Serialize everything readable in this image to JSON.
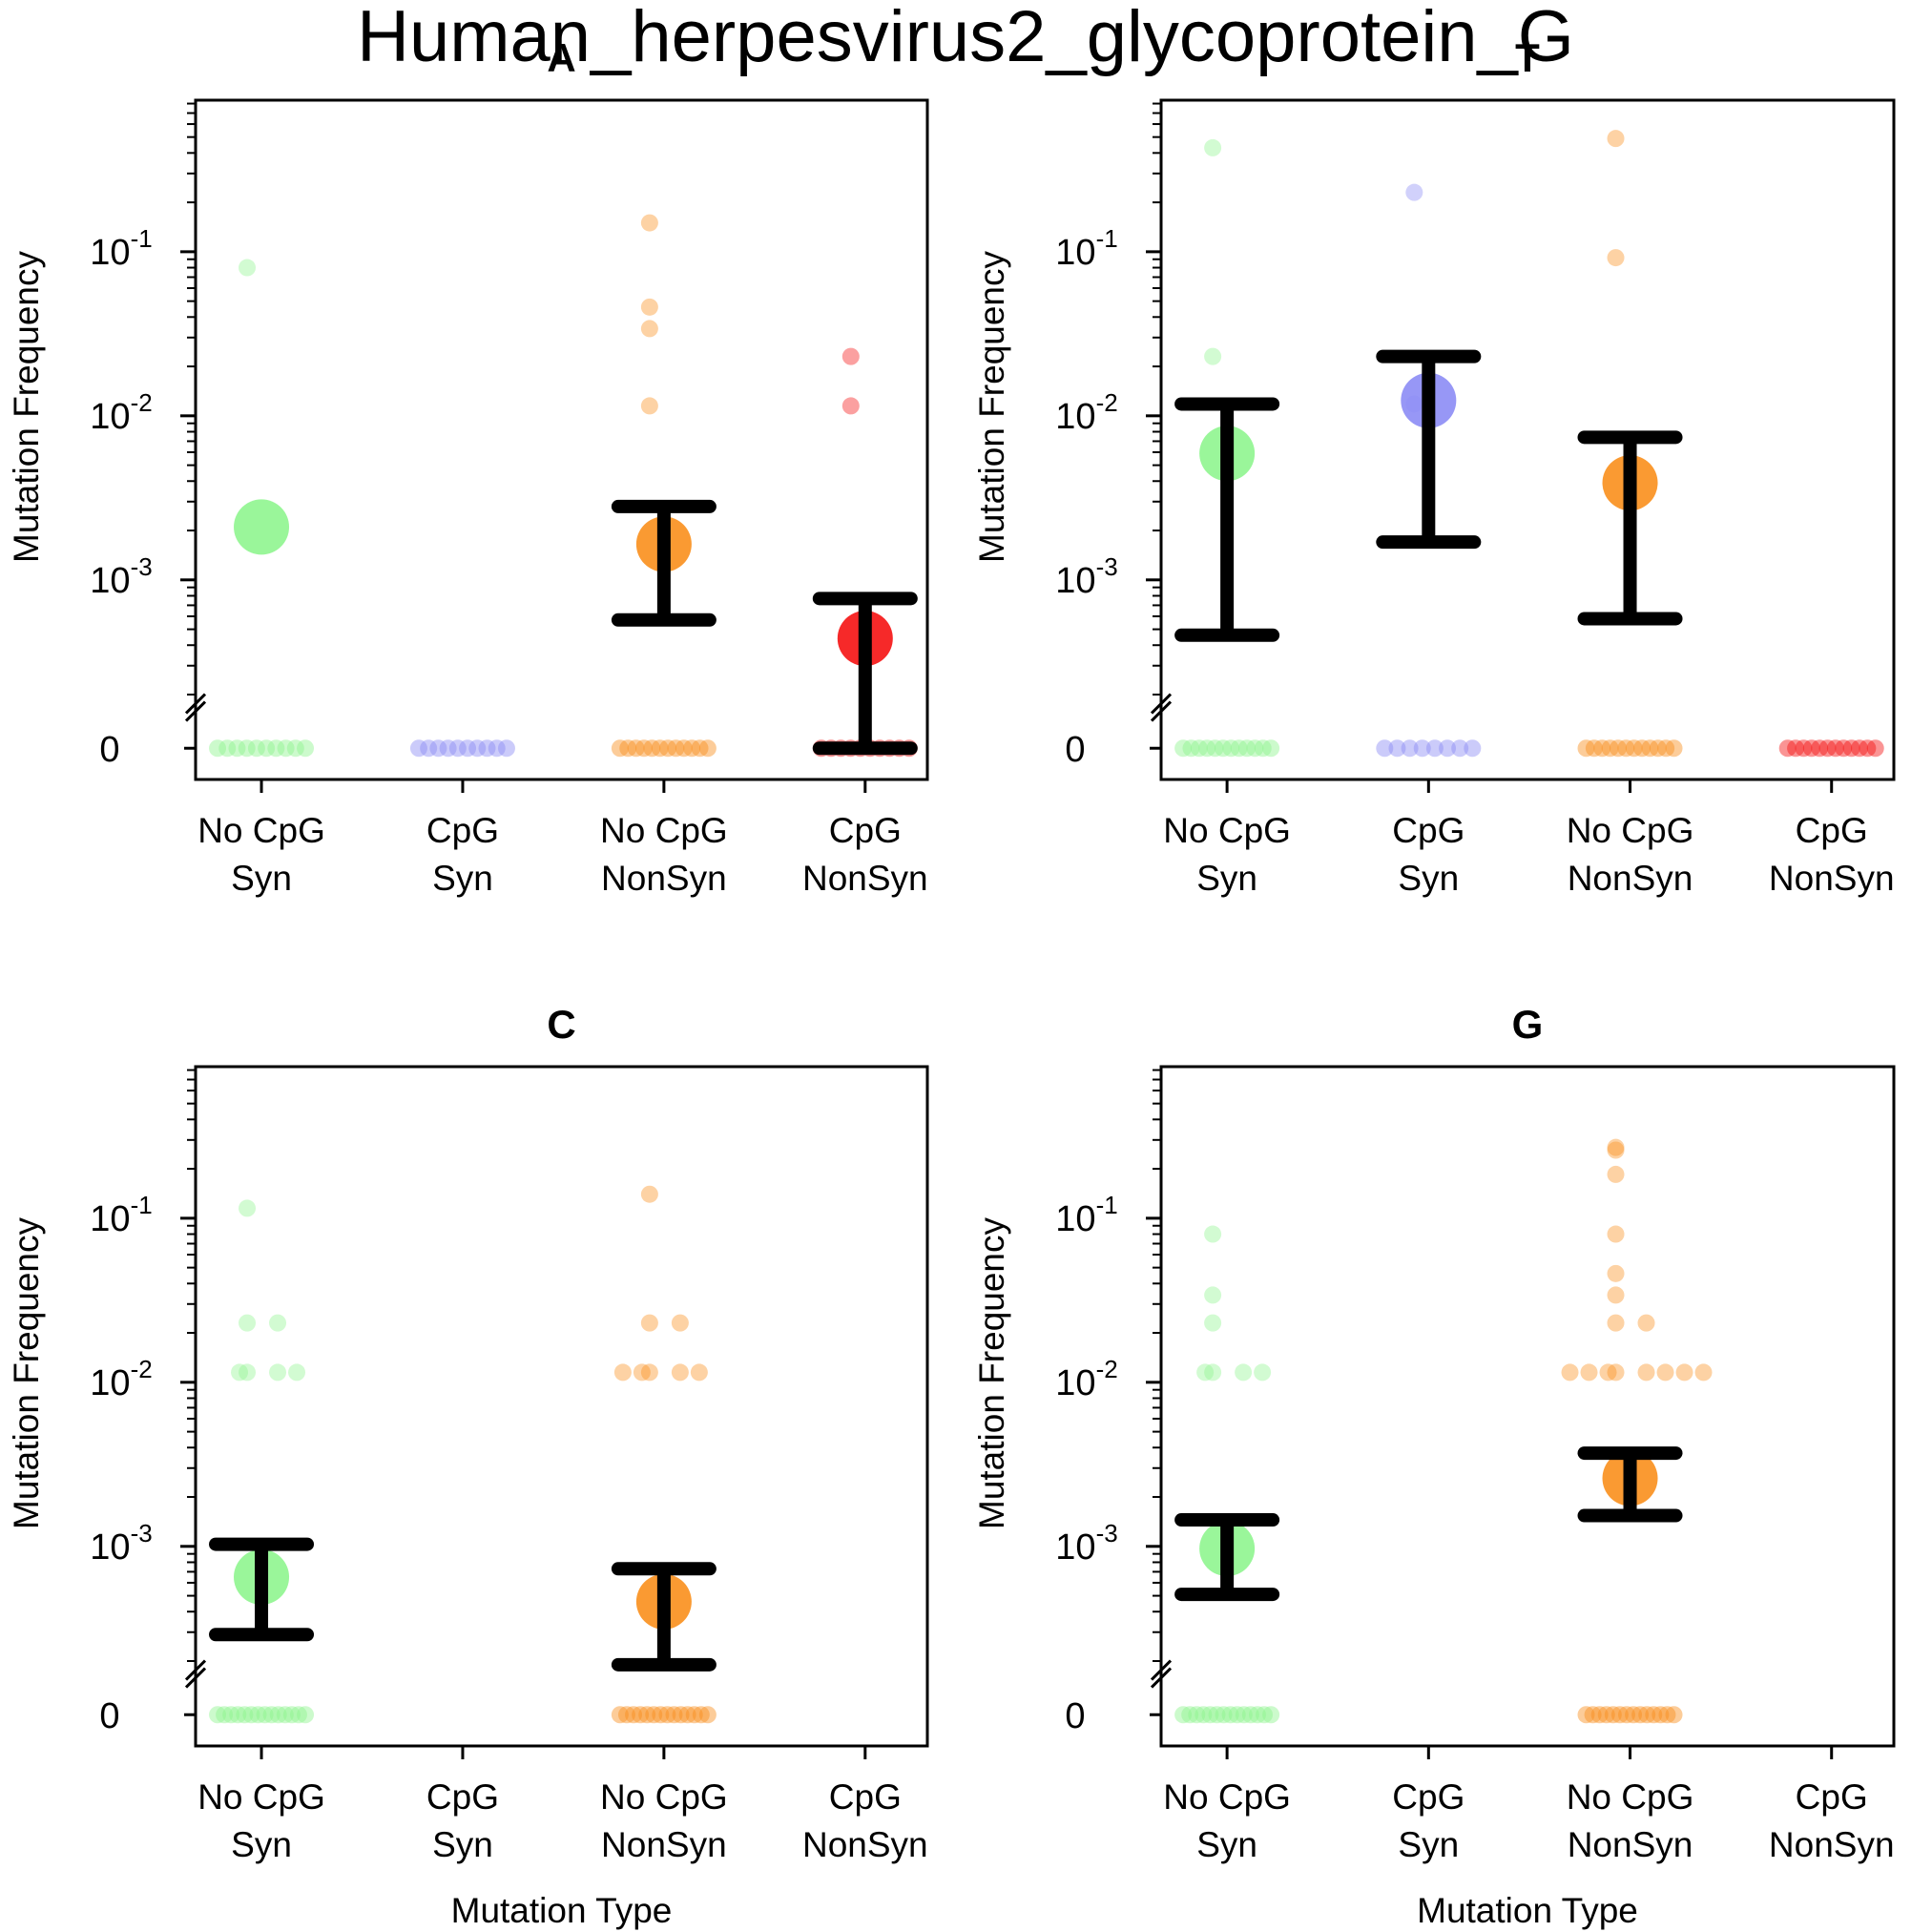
{
  "title": "Human_herpesvirus2_glycoprotein_G",
  "colors": {
    "syn_nocpg": "#8ff58f",
    "syn_cpg": "#8c8cf5",
    "nonsyn_nocpg": "#f98f1c",
    "nonsyn_cpg": "#f51212",
    "errorbar": "#000000",
    "axis": "#000000"
  },
  "chart_data": [
    {
      "type": "scatter",
      "title": "A",
      "xlabel": "",
      "ylabel": "Mutation Frequency",
      "yscale": "log",
      "ylim": [
        0.0002,
        0.8
      ],
      "zero_row": true,
      "categories": [
        "No CpG\nSyn",
        "CpG\nSyn",
        "No CpG\nNonSyn",
        "CpG\nNonSyn"
      ],
      "yticks": [
        {
          "base": "10",
          "exp": "-1"
        },
        {
          "base": "10",
          "exp": "-2"
        },
        {
          "base": "10",
          "exp": "-3"
        }
      ],
      "zero_label": "0",
      "series": [
        {
          "category": "No CpG\nSyn",
          "color_key": "syn_nocpg",
          "mean": 0.0021,
          "ci": null,
          "points": [
            0.08
          ],
          "zero_points": 10
        },
        {
          "category": "CpG\nSyn",
          "color_key": "syn_cpg",
          "mean": null,
          "ci": null,
          "points": [],
          "zero_points": 10
        },
        {
          "category": "No CpG\nNonSyn",
          "color_key": "nonsyn_nocpg",
          "mean": 0.00165,
          "ci": [
            0.00057,
            0.0028
          ],
          "points": [
            0.15,
            0.046,
            0.034,
            0.0115
          ],
          "zero_points": 12
        },
        {
          "category": "CpG\nNonSyn",
          "color_key": "nonsyn_cpg",
          "mean": 0.00044,
          "ci": [
            0.0,
            0.00077
          ],
          "points": [
            0.023,
            0.0115
          ],
          "zero_points": 10
        }
      ]
    },
    {
      "type": "scatter",
      "title": "T",
      "xlabel": "",
      "ylabel": "Mutation Frequency",
      "yscale": "log",
      "ylim": [
        0.0002,
        0.8
      ],
      "zero_row": true,
      "categories": [
        "No CpG\nSyn",
        "CpG\nSyn",
        "No CpG\nNonSyn",
        "CpG\nNonSyn"
      ],
      "yticks": [
        {
          "base": "10",
          "exp": "-1"
        },
        {
          "base": "10",
          "exp": "-2"
        },
        {
          "base": "10",
          "exp": "-3"
        }
      ],
      "zero_label": "0",
      "series": [
        {
          "category": "No CpG\nSyn",
          "color_key": "syn_nocpg",
          "mean": 0.0059,
          "ci": [
            0.00046,
            0.0118
          ],
          "points": [
            0.43,
            0.023
          ],
          "zero_points": 12
        },
        {
          "category": "CpG\nSyn",
          "color_key": "syn_cpg",
          "mean": 0.0124,
          "ci": [
            0.0017,
            0.023
          ],
          "points": [
            0.23,
            0.0118
          ],
          "zero_points": 8
        },
        {
          "category": "No CpG\nNonSyn",
          "color_key": "nonsyn_nocpg",
          "mean": 0.0039,
          "ci": [
            0.00058,
            0.0074
          ],
          "points": [
            0.49,
            0.092
          ],
          "zero_points": 12
        },
        {
          "category": "CpG\nNonSyn",
          "color_key": "nonsyn_cpg",
          "mean": null,
          "ci": null,
          "points": [],
          "zero_points": 12
        }
      ]
    },
    {
      "type": "scatter",
      "title": "C",
      "xlabel": "Mutation Type",
      "ylabel": "Mutation Frequency",
      "yscale": "log",
      "ylim": [
        0.0002,
        0.8
      ],
      "zero_row": true,
      "categories": [
        "No CpG\nSyn",
        "CpG\nSyn",
        "No CpG\nNonSyn",
        "CpG\nNonSyn"
      ],
      "yticks": [
        {
          "base": "10",
          "exp": "-1"
        },
        {
          "base": "10",
          "exp": "-2"
        },
        {
          "base": "10",
          "exp": "-3"
        }
      ],
      "zero_label": "0",
      "series": [
        {
          "category": "No CpG\nSyn",
          "color_key": "syn_nocpg",
          "mean": 0.00065,
          "ci": [
            0.00029,
            0.00103
          ],
          "points": [
            0.115,
            0.023,
            0.023,
            0.0115,
            0.0115,
            0.0115,
            0.0115
          ],
          "zero_points": 14
        },
        {
          "category": "CpG\nSyn",
          "color_key": "syn_cpg",
          "mean": null,
          "ci": null,
          "points": [],
          "zero_points": 0
        },
        {
          "category": "No CpG\nNonSyn",
          "color_key": "nonsyn_nocpg",
          "mean": 0.00046,
          "ci": [
            0.00019,
            0.00073
          ],
          "points": [
            0.14,
            0.023,
            0.023,
            0.0115,
            0.0115,
            0.0115,
            0.0115,
            0.0115
          ],
          "zero_points": 14
        },
        {
          "category": "CpG\nNonSyn",
          "color_key": "nonsyn_cpg",
          "mean": null,
          "ci": null,
          "points": [],
          "zero_points": 0
        }
      ]
    },
    {
      "type": "scatter",
      "title": "G",
      "xlabel": "Mutation Type",
      "ylabel": "Mutation Frequency",
      "yscale": "log",
      "ylim": [
        0.0002,
        0.8
      ],
      "zero_row": true,
      "categories": [
        "No CpG\nSyn",
        "CpG\nSyn",
        "No CpG\nNonSyn",
        "CpG\nNonSyn"
      ],
      "yticks": [
        {
          "base": "10",
          "exp": "-1"
        },
        {
          "base": "10",
          "exp": "-2"
        },
        {
          "base": "10",
          "exp": "-3"
        }
      ],
      "zero_label": "0",
      "series": [
        {
          "category": "No CpG\nSyn",
          "color_key": "syn_nocpg",
          "mean": 0.00097,
          "ci": [
            0.00051,
            0.00145
          ],
          "points": [
            0.08,
            0.034,
            0.023,
            0.0115,
            0.0115,
            0.0115,
            0.0115
          ],
          "zero_points": 14
        },
        {
          "category": "CpG\nSyn",
          "color_key": "syn_cpg",
          "mean": null,
          "ci": null,
          "points": [],
          "zero_points": 0
        },
        {
          "category": "No CpG\nNonSyn",
          "color_key": "nonsyn_nocpg",
          "mean": 0.0026,
          "ci": [
            0.00154,
            0.0037
          ],
          "points": [
            0.27,
            0.26,
            0.185,
            0.08,
            0.046,
            0.034,
            0.023,
            0.023,
            0.0115,
            0.0115,
            0.0115,
            0.0115,
            0.0115,
            0.0115,
            0.0115,
            0.0115
          ],
          "zero_points": 14
        },
        {
          "category": "CpG\nNonSyn",
          "color_key": "nonsyn_cpg",
          "mean": null,
          "ci": null,
          "points": [],
          "zero_points": 0
        }
      ]
    }
  ]
}
